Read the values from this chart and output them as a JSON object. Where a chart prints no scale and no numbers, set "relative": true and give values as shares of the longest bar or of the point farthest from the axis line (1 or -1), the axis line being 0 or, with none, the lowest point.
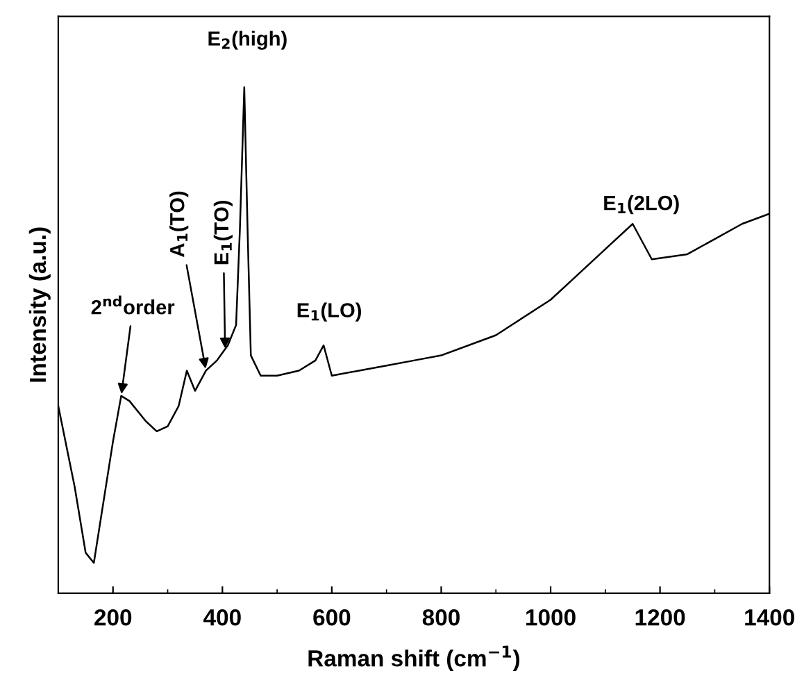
{
  "chart_data": {
    "type": "line",
    "relative": true,
    "xlabel": "Raman shift (cm$^{−1}$)",
    "ylabel": "Intensity (a.u.)",
    "xlim": [
      100,
      1400
    ],
    "xticks": [
      200,
      {
        "value": 300,
        "label": null
      },
      400,
      {
        "value": 500,
        "label": null
      },
      600,
      {
        "value": 700,
        "label": null
      },
      800,
      {
        "value": 900,
        "label": null
      },
      1000,
      {
        "value": 1100,
        "label": null
      },
      1200,
      {
        "value": 1300,
        "label": null
      },
      1400
    ],
    "grid": false,
    "legend": false,
    "marker": "none",
    "line_style": "solid",
    "series": [
      {
        "color": "#000000",
        "x": [
          100,
          130,
          150,
          165,
          200,
          215,
          230,
          260,
          280,
          300,
          320,
          335,
          350,
          370,
          390,
          410,
          425,
          432,
          440,
          446,
          452,
          470,
          500,
          540,
          570,
          585,
          600,
          650,
          700,
          750,
          800,
          900,
          1000,
          1050,
          1100,
          1150,
          1185,
          1250,
          1300,
          1350,
          1400
        ],
        "values": [
          0.37,
          0.21,
          0.08,
          0.06,
          0.3,
          0.39,
          0.38,
          0.34,
          0.32,
          0.33,
          0.37,
          0.44,
          0.4,
          0.44,
          0.46,
          0.49,
          0.53,
          0.72,
          1,
          0.72,
          0.47,
          0.43,
          0.43,
          0.44,
          0.46,
          0.49,
          0.43,
          0.44,
          0.45,
          0.46,
          0.47,
          0.51,
          0.58,
          0.63,
          0.68,
          0.73,
          0.66,
          0.67,
          0.7,
          0.73,
          0.75
        ]
      }
    ],
    "annotations": [
      {
        "text": "2$^{nd}$order",
        "x": 215,
        "y": 0.39
      },
      {
        "text": "A$_{1}$(TO)",
        "x": 370,
        "y": 0.44
      },
      {
        "text": "E$_{1}$(TO)",
        "x": 405,
        "y": 0.48
      },
      "E$_{2}$(high)",
      "E$_{1}$(LO)",
      "E$_{1}$(2LO)"
    ]
  }
}
